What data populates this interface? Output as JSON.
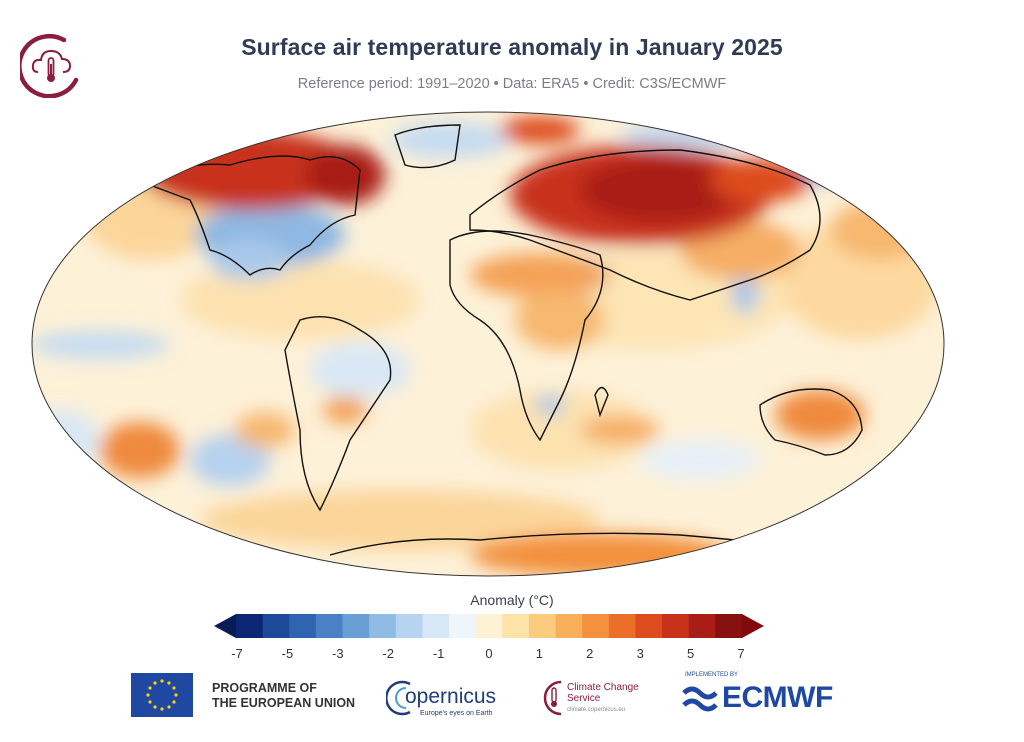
{
  "header": {
    "title": "Surface air temperature anomaly in January 2025",
    "subtitle": "Reference period: 1991–2020 • Data: ERA5 • Credit: C3S/ECMWF"
  },
  "colorbar": {
    "label": "Anomaly (°C)",
    "ticks": [
      "-7",
      "-5",
      "-3",
      "-2",
      "-1",
      "0",
      "1",
      "2",
      "3",
      "5",
      "7"
    ],
    "colors": [
      "#0c2673",
      "#1c4a98",
      "#2e64b0",
      "#4a80c4",
      "#6a9fd6",
      "#8fbbe4",
      "#b6d4ef",
      "#d6e7f6",
      "#eef5fb",
      "#fdf3d4",
      "#fde3a8",
      "#fbcc7e",
      "#f8b05a",
      "#f3913e",
      "#eb6e29",
      "#dd4c1f",
      "#c8321b",
      "#a91d17",
      "#87110f"
    ]
  },
  "footer": {
    "eu_text_line1": "PROGRAMME OF",
    "eu_text_line2": "THE EUROPEAN UNION",
    "copernicus_name": "opernicus",
    "copernicus_tag": "Europe's eyes on Earth",
    "c3s_name": "Climate Change Service",
    "c3s_tag": "climate.copernicus.eu",
    "ecmwf_small": "IMPLEMENTED BY",
    "ecmwf_name": "ECMWF"
  }
}
